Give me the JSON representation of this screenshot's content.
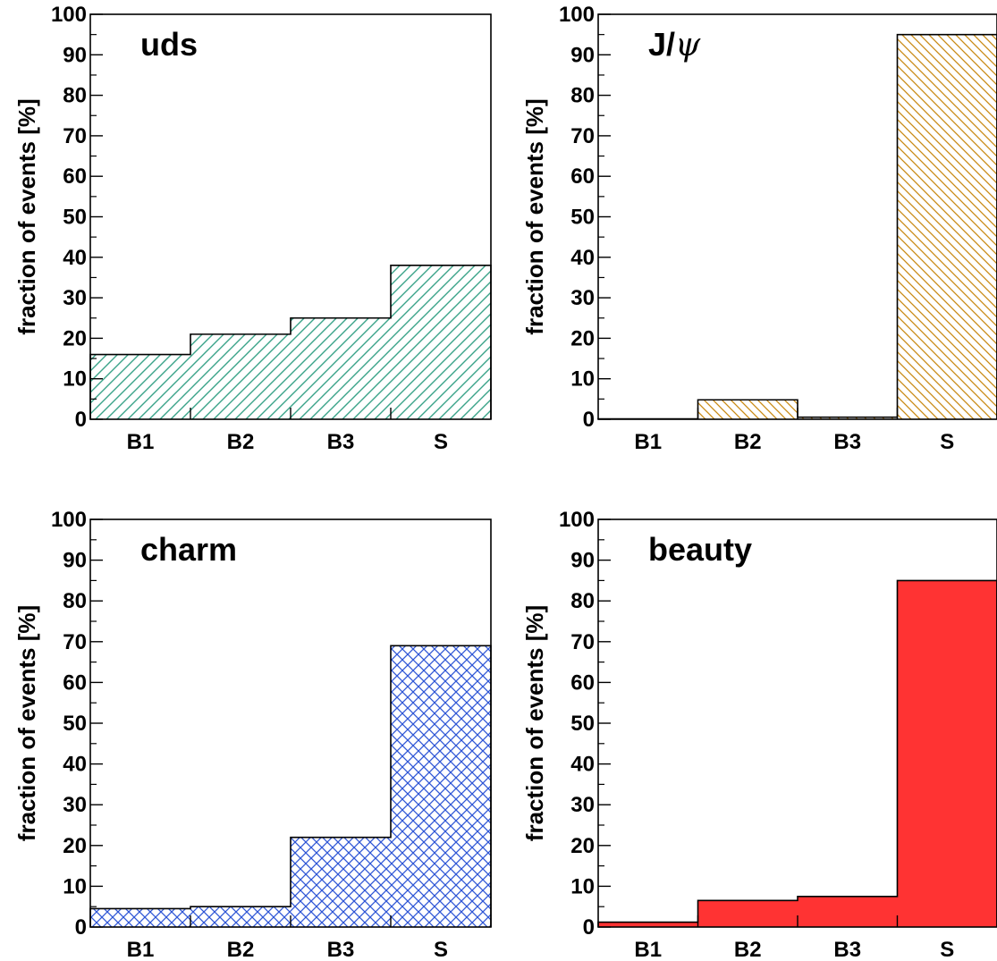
{
  "chart_data": [
    {
      "type": "bar",
      "title": "uds",
      "ylabel": "fraction of events [%]",
      "categories": [
        "B1",
        "B2",
        "B3",
        "S"
      ],
      "values": [
        16,
        21,
        25,
        38
      ],
      "ylim": [
        0,
        100
      ],
      "yticks": [
        "0",
        "10",
        "20",
        "30",
        "40",
        "50",
        "60",
        "70",
        "80",
        "90",
        "100"
      ],
      "grid": false,
      "fill": {
        "style": "hatch-forward",
        "color": "#3aa389"
      }
    },
    {
      "type": "bar",
      "title": "J/ψ",
      "title_parts": [
        "J/",
        "ψ"
      ],
      "ylabel": "fraction of events [%]",
      "categories": [
        "B1",
        "B2",
        "B3",
        "S"
      ],
      "values": [
        0.1,
        4.8,
        0.5,
        95
      ],
      "ylim": [
        0,
        100
      ],
      "yticks": [
        "0",
        "10",
        "20",
        "30",
        "40",
        "50",
        "60",
        "70",
        "80",
        "90",
        "100"
      ],
      "grid": false,
      "fill": {
        "style": "hatch-backward",
        "color": "#c98a14"
      }
    },
    {
      "type": "bar",
      "title": "charm",
      "ylabel": "fraction of events [%]",
      "categories": [
        "B1",
        "B2",
        "B3",
        "S"
      ],
      "values": [
        4.5,
        5,
        22,
        69
      ],
      "ylim": [
        0,
        100
      ],
      "yticks": [
        "0",
        "10",
        "20",
        "30",
        "40",
        "50",
        "60",
        "70",
        "80",
        "90",
        "100"
      ],
      "grid": false,
      "fill": {
        "style": "crosshatch",
        "color": "#2f56d6"
      }
    },
    {
      "type": "bar",
      "title": "beauty",
      "ylabel": "fraction of events [%]",
      "categories": [
        "B1",
        "B2",
        "B3",
        "S"
      ],
      "values": [
        1.2,
        6.5,
        7.5,
        85
      ],
      "ylim": [
        0,
        100
      ],
      "yticks": [
        "0",
        "10",
        "20",
        "30",
        "40",
        "50",
        "60",
        "70",
        "80",
        "90",
        "100"
      ],
      "grid": false,
      "fill": {
        "style": "solid",
        "color": "#ff3333"
      }
    }
  ]
}
